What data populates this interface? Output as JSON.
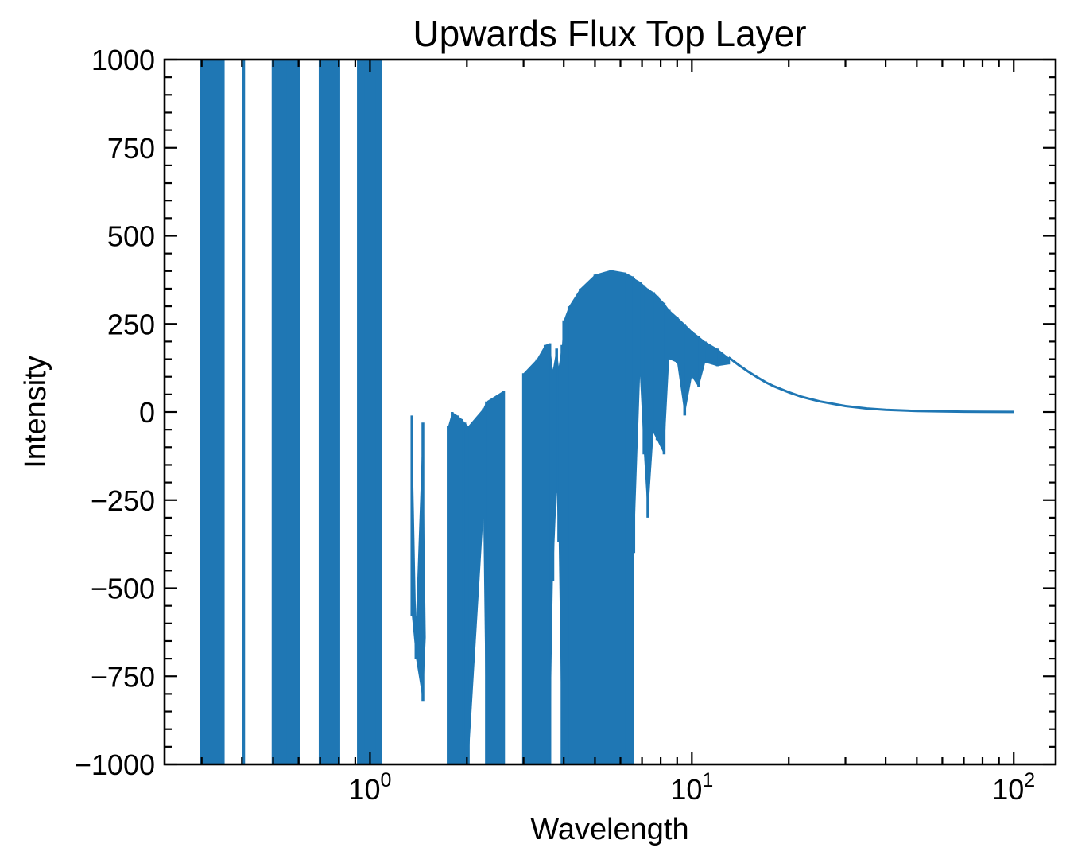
{
  "chart_data": {
    "type": "line",
    "title": "Upwards Flux Top Layer",
    "xlabel": "Wavelength",
    "ylabel": "Intensity",
    "xscale": "log",
    "xlim": [
      0.23,
      135
    ],
    "ylim": [
      -1000,
      1000
    ],
    "grid": false,
    "legend": "none",
    "series_color": "#1f77b4",
    "x_ticks": [
      {
        "base": "10",
        "exp": "0",
        "value": 1
      },
      {
        "base": "10",
        "exp": "1",
        "value": 10
      },
      {
        "base": "10",
        "exp": "2",
        "value": 100
      }
    ],
    "y_ticks": [
      "1000",
      "750",
      "500",
      "250",
      "0",
      "−250",
      "−500",
      "−750",
      "−1000"
    ],
    "y_tick_values": [
      1000,
      750,
      500,
      250,
      0,
      -250,
      -500,
      -750,
      -1000
    ],
    "series": [
      {
        "envelope": [
          [
            0.3,
            -1000,
            1000
          ],
          [
            0.32,
            -1000,
            1000
          ],
          [
            0.345,
            -1000,
            1000
          ],
          [
            0.35,
            -1000,
            1000
          ],
          [
            0.405,
            -1000,
            1000
          ],
          [
            0.5,
            -1000,
            1000
          ],
          [
            0.55,
            -1000,
            1000
          ],
          [
            0.6,
            -1000,
            1000
          ],
          [
            0.7,
            -1000,
            1000
          ],
          [
            0.8,
            -1000,
            1000
          ],
          [
            0.92,
            -1000,
            1000
          ],
          [
            0.96,
            -1000,
            1000
          ],
          [
            1.04,
            -1000,
            1000
          ],
          [
            1.08,
            -1000,
            1000
          ],
          [
            1.35,
            -580,
            -10
          ],
          [
            1.39,
            -700,
            -580
          ],
          [
            1.46,
            -820,
            -30
          ],
          [
            1.49,
            -640,
            -640
          ],
          [
            1.75,
            -1000,
            -40
          ],
          [
            1.8,
            -1000,
            0
          ],
          [
            1.87,
            -1000,
            -10
          ],
          [
            1.93,
            -1000,
            -20
          ],
          [
            1.97,
            -1000,
            -30
          ],
          [
            2.02,
            -1000,
            -40
          ],
          [
            2.25,
            -300,
            10
          ],
          [
            2.3,
            -1000,
            30
          ],
          [
            2.6,
            -1000,
            60
          ],
          [
            3.0,
            -1000,
            110
          ],
          [
            3.3,
            -1000,
            150
          ],
          [
            3.5,
            -1000,
            190
          ],
          [
            3.62,
            -1000,
            195
          ],
          [
            3.7,
            -480,
            120
          ],
          [
            3.8,
            -230,
            180
          ],
          [
            3.86,
            -370,
            130
          ],
          [
            3.95,
            -1000,
            190
          ],
          [
            4.0,
            -1000,
            260
          ],
          [
            4.15,
            -1000,
            300
          ],
          [
            4.5,
            -1000,
            350
          ],
          [
            5.0,
            -1000,
            390
          ],
          [
            5.6,
            -1000,
            403
          ],
          [
            6.2,
            -1000,
            396
          ],
          [
            6.53,
            -1000,
            385
          ],
          [
            6.6,
            -400,
            380
          ],
          [
            6.9,
            100,
            370
          ],
          [
            7.1,
            -120,
            360
          ],
          [
            7.3,
            -300,
            350
          ],
          [
            7.6,
            -60,
            340
          ],
          [
            7.8,
            -80,
            330
          ],
          [
            8.2,
            -120,
            310
          ],
          [
            8.5,
            150,
            290
          ],
          [
            9.0,
            140,
            270
          ],
          [
            9.5,
            -10,
            250
          ],
          [
            10.0,
            100,
            230
          ],
          [
            10.5,
            70,
            215
          ],
          [
            11.0,
            140,
            200
          ],
          [
            12.0,
            130,
            180
          ],
          [
            13.0,
            135,
            155
          ]
        ],
        "curve": [
          [
            13,
            155
          ],
          [
            14,
            133
          ],
          [
            15,
            114
          ],
          [
            16,
            98
          ],
          [
            17,
            84
          ],
          [
            18,
            73
          ],
          [
            20,
            56
          ],
          [
            22,
            43
          ],
          [
            25,
            30
          ],
          [
            30,
            17
          ],
          [
            35,
            10
          ],
          [
            40,
            6
          ],
          [
            50,
            3
          ],
          [
            60,
            1.5
          ],
          [
            70,
            1
          ],
          [
            80,
            0.5
          ],
          [
            100,
            0.3
          ]
        ]
      }
    ]
  }
}
